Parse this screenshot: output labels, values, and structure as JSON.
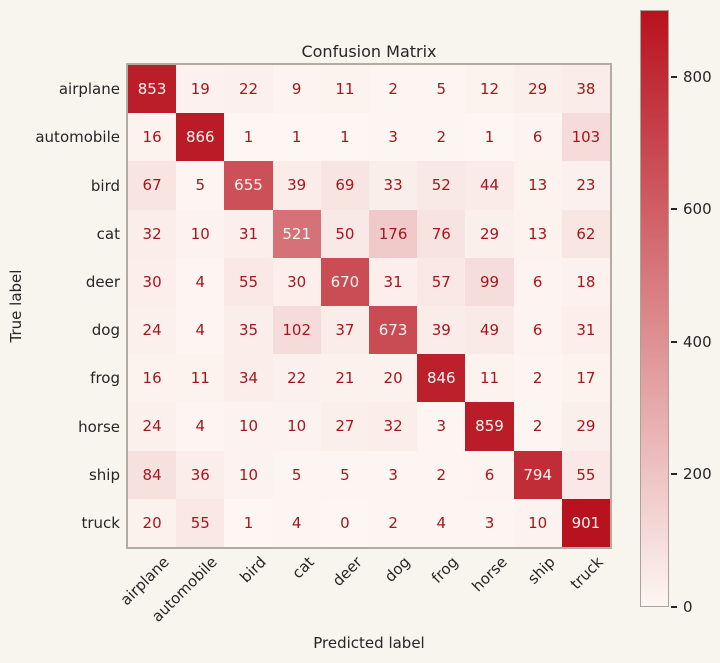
{
  "chart_data": {
    "type": "heatmap",
    "title": "Confusion Matrix",
    "xlabel": "Predicted label",
    "ylabel": "True label",
    "x_categories": [
      "airplane",
      "automobile",
      "bird",
      "cat",
      "deer",
      "dog",
      "frog",
      "horse",
      "ship",
      "truck"
    ],
    "y_categories": [
      "airplane",
      "automobile",
      "bird",
      "cat",
      "deer",
      "dog",
      "frog",
      "horse",
      "ship",
      "truck"
    ],
    "matrix": [
      [
        853,
        19,
        22,
        9,
        11,
        2,
        5,
        12,
        29,
        38
      ],
      [
        16,
        866,
        1,
        1,
        1,
        3,
        2,
        1,
        6,
        103
      ],
      [
        67,
        5,
        655,
        39,
        69,
        33,
        52,
        44,
        13,
        23
      ],
      [
        32,
        10,
        31,
        521,
        50,
        176,
        76,
        29,
        13,
        62
      ],
      [
        30,
        4,
        55,
        30,
        670,
        31,
        57,
        99,
        6,
        18
      ],
      [
        24,
        4,
        35,
        102,
        37,
        673,
        39,
        49,
        6,
        31
      ],
      [
        16,
        11,
        34,
        22,
        21,
        20,
        846,
        11,
        2,
        17
      ],
      [
        24,
        4,
        10,
        10,
        27,
        32,
        3,
        859,
        2,
        29
      ],
      [
        84,
        36,
        10,
        5,
        5,
        3,
        2,
        6,
        794,
        55
      ],
      [
        20,
        55,
        1,
        4,
        0,
        2,
        4,
        3,
        10,
        901
      ]
    ],
    "vmin": 0,
    "vmax": 901,
    "colorbar": {
      "ticks": [
        0,
        200,
        400,
        600,
        800
      ],
      "position": "right"
    },
    "legend": "none",
    "grid": false
  },
  "colors": {
    "background": "#f8f4ee",
    "cmap_low": "#fdf6f2",
    "cmap_high": "#b8121e",
    "annot_dark": "#a5161d",
    "annot_light": "#fcf5f2",
    "tick_text": "#262626",
    "axes_border": "#b3aca3"
  }
}
